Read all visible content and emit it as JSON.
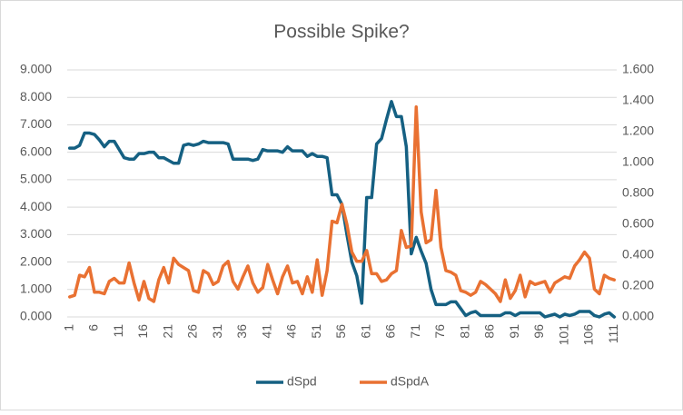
{
  "chart_data": {
    "type": "line",
    "title": "Possible Spike?",
    "categories": [
      1,
      null,
      null,
      null,
      null,
      6,
      null,
      null,
      null,
      null,
      11,
      null,
      null,
      null,
      null,
      16,
      null,
      null,
      null,
      null,
      21,
      null,
      null,
      null,
      null,
      26,
      null,
      null,
      null,
      null,
      31,
      null,
      null,
      null,
      null,
      36,
      null,
      null,
      null,
      null,
      41,
      null,
      null,
      null,
      null,
      46,
      null,
      null,
      null,
      null,
      51,
      null,
      null,
      null,
      null,
      56,
      null,
      null,
      null,
      null,
      61,
      null,
      null,
      null,
      null,
      66,
      null,
      null,
      null,
      null,
      71,
      null,
      null,
      null,
      null,
      76,
      null,
      null,
      null,
      null,
      81,
      null,
      null,
      null,
      null,
      86,
      null,
      null,
      null,
      null,
      91,
      null,
      null,
      null,
      null,
      96,
      null,
      null,
      null,
      null,
      101,
      null,
      null,
      null,
      null,
      106,
      null,
      null,
      null,
      null,
      111
    ],
    "series": [
      {
        "name": "dSpd",
        "color": "#156082",
        "values": [
          6.15,
          6.15,
          6.25,
          6.7,
          6.7,
          6.65,
          6.45,
          6.2,
          6.4,
          6.4,
          6.1,
          5.8,
          5.75,
          5.75,
          5.95,
          5.95,
          6.0,
          6.0,
          5.8,
          5.8,
          5.7,
          5.6,
          5.6,
          6.25,
          6.3,
          6.25,
          6.3,
          6.4,
          6.35,
          6.35,
          6.35,
          6.35,
          6.3,
          5.75,
          5.75,
          5.75,
          5.75,
          5.7,
          5.75,
          6.1,
          6.05,
          6.05,
          6.05,
          6.0,
          6.2,
          6.05,
          6.05,
          6.05,
          5.85,
          5.95,
          5.85,
          5.85,
          5.8,
          4.45,
          4.45,
          4.1,
          3.0,
          2.0,
          1.5,
          0.5,
          4.35,
          4.35,
          6.3,
          6.5,
          7.2,
          7.85,
          7.3,
          7.3,
          6.2,
          2.3,
          2.9,
          2.4,
          1.95,
          1.0,
          0.45,
          0.45,
          0.45,
          0.55,
          0.55,
          0.3,
          0.05,
          0.15,
          0.2,
          0.05,
          0.05,
          0.05,
          0.05,
          0.05,
          0.15,
          0.15,
          0.05,
          0.15,
          0.15,
          0.15,
          0.15,
          0.15,
          0.0,
          0.05,
          0.1,
          0.0,
          0.1,
          0.05,
          0.1,
          0.2,
          0.2,
          0.2,
          0.05,
          0.0,
          0.1,
          0.15,
          0.0
        ]
      },
      {
        "name": "dSpdA",
        "color": "#e97132",
        "axis": "y2",
        "values": [
          0.13,
          0.14,
          0.27,
          0.26,
          0.32,
          0.16,
          0.16,
          0.15,
          0.23,
          0.25,
          0.22,
          0.22,
          0.35,
          0.22,
          0.11,
          0.23,
          0.12,
          0.1,
          0.24,
          0.32,
          0.22,
          0.38,
          0.34,
          0.32,
          0.3,
          0.17,
          0.16,
          0.3,
          0.28,
          0.21,
          0.23,
          0.33,
          0.36,
          0.23,
          0.18,
          0.26,
          0.33,
          0.22,
          0.16,
          0.19,
          0.34,
          0.24,
          0.15,
          0.26,
          0.33,
          0.22,
          0.23,
          0.15,
          0.26,
          0.16,
          0.37,
          0.14,
          0.3,
          0.62,
          0.61,
          0.73,
          0.6,
          0.42,
          0.36,
          0.36,
          0.43,
          0.28,
          0.28,
          0.23,
          0.24,
          0.28,
          0.3,
          0.56,
          0.45,
          0.46,
          1.36,
          0.68,
          0.48,
          0.5,
          0.82,
          0.45,
          0.3,
          0.29,
          0.27,
          0.17,
          0.16,
          0.14,
          0.16,
          0.23,
          0.21,
          0.18,
          0.15,
          0.1,
          0.24,
          0.12,
          0.17,
          0.27,
          0.13,
          0.23,
          0.21,
          0.22,
          0.23,
          0.16,
          0.22,
          0.24,
          0.26,
          0.25,
          0.33,
          0.37,
          0.42,
          0.38,
          0.18,
          0.15,
          0.27,
          0.25,
          0.24
        ]
      }
    ],
    "ylim": [
      0,
      9
    ],
    "yticks": [
      {
        "value": 0,
        "label": "0.000"
      },
      {
        "value": 1,
        "label": "1.000"
      },
      {
        "value": 2,
        "label": "2.000"
      },
      {
        "value": 3,
        "label": "3.000"
      },
      {
        "value": 4,
        "label": "4.000"
      },
      {
        "value": 5,
        "label": "5.000"
      },
      {
        "value": 6,
        "label": "6.000"
      },
      {
        "value": 7,
        "label": "7.000"
      },
      {
        "value": 8,
        "label": "8.000"
      },
      {
        "value": 9,
        "label": "9.000"
      }
    ],
    "y2lim": [
      0,
      1.6
    ],
    "y2ticks": [
      {
        "value": 0,
        "label": "0.000"
      },
      {
        "value": 0.2,
        "label": "0.200"
      },
      {
        "value": 0.4,
        "label": "0.400"
      },
      {
        "value": 0.6,
        "label": "0.600"
      },
      {
        "value": 0.8,
        "label": "0.800"
      },
      {
        "value": 1.0,
        "label": "1.000"
      },
      {
        "value": 1.2,
        "label": "1.200"
      },
      {
        "value": 1.4,
        "label": "1.400"
      },
      {
        "value": 1.6,
        "label": "1.600"
      }
    ],
    "grid": true,
    "legend": "bottom"
  }
}
